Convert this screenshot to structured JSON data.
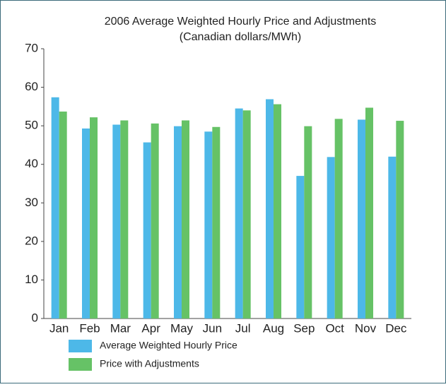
{
  "chart_data": {
    "type": "bar",
    "title": "2006 Average Weighted Hourly Price and Adjustments",
    "subtitle": "(Canadian dollars/MWh)",
    "categories": [
      "Jan",
      "Feb",
      "Mar",
      "Apr",
      "May",
      "Jun",
      "Jul",
      "Aug",
      "Sep",
      "Oct",
      "Nov",
      "Dec"
    ],
    "series": [
      {
        "name": "Average Weighted Hourly Price",
        "color": "#4db8e8",
        "values": [
          57.4,
          49.3,
          50.3,
          45.7,
          49.9,
          48.5,
          54.5,
          56.9,
          37.0,
          41.9,
          51.6,
          42.0
        ]
      },
      {
        "name": "Price with Adjustments",
        "color": "#66c266",
        "values": [
          53.7,
          52.2,
          51.4,
          50.6,
          51.4,
          49.7,
          54.0,
          55.6,
          49.9,
          51.8,
          54.7,
          51.3
        ]
      }
    ],
    "ylim": [
      0,
      70
    ],
    "yticks": [
      0,
      10,
      20,
      30,
      40,
      50,
      60,
      70
    ]
  }
}
